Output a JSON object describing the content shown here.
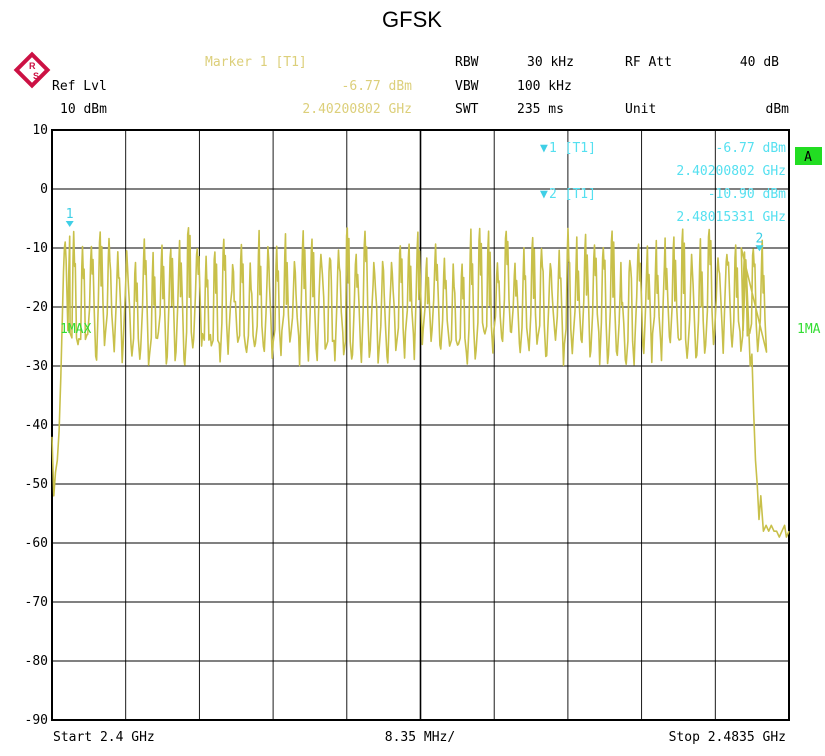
{
  "title": "GFSK",
  "colors": {
    "trace": "#c8c04a",
    "marker_text": "#dccf7a",
    "marker_readout": "#55e0f0",
    "marker_symbol": "#3fcfe6",
    "trace_label": "#33dd33",
    "badge_bg": "#22dd22",
    "grid": "#000000",
    "logo": "#cc1144"
  },
  "icons": {
    "logo": "rohde-schwarz-logo-icon"
  },
  "header": {
    "ref_lvl_label": "Ref Lvl",
    "ref_lvl_value": "10 dBm",
    "marker_title": "Marker 1 [T1]",
    "marker_level": "-6.77 dBm",
    "marker_freq": "2.40200802 GHz",
    "rbw_label": "RBW",
    "rbw_value": "30 kHz",
    "vbw_label": "VBW",
    "vbw_value": "100 kHz",
    "swt_label": "SWT",
    "swt_value": "235 ms",
    "rf_att_label": "RF Att",
    "rf_att_value": "40 dB",
    "unit_label": "Unit",
    "unit_value": "dBm"
  },
  "markers_panel": {
    "m1_label": "1 [T1]",
    "m1_level": "-6.77 dBm",
    "m1_freq": "2.40200802 GHz",
    "m2_label": "2 [T1]",
    "m2_level": "-10.90 dBm",
    "m2_freq": "2.48015331 GHz"
  },
  "badge": "A",
  "trace_label_left": "1MAX",
  "trace_label_right": "1MA",
  "footer": {
    "start": "Start 2.4 GHz",
    "span": "8.35 MHz/",
    "stop": "Stop 2.4835 GHz"
  },
  "chart_data": {
    "type": "line",
    "title": "GFSK",
    "xlabel": "",
    "ylabel": "",
    "x_unit": "GHz",
    "y_unit": "dBm",
    "xlim": [
      2.4,
      2.4835
    ],
    "ylim": [
      -90,
      10
    ],
    "yticks": [
      10,
      0,
      -10,
      -20,
      -30,
      -40,
      -50,
      -60,
      -70,
      -80,
      -90
    ],
    "ytick_labels": [
      "10",
      "0",
      "-10",
      "-20",
      "-30",
      "-40",
      "-50",
      "-60",
      "-70",
      "-80",
      "-90"
    ],
    "grid": true,
    "x_divisions": 10,
    "display_line_y": -20,
    "markers": [
      {
        "id": "1",
        "x": 2.40200802,
        "y": -6.77
      },
      {
        "id": "2",
        "x": 2.48015331,
        "y": -10.9
      }
    ],
    "series": [
      {
        "x": [
          2.4,
          2.4002,
          2.4004,
          2.4006,
          2.4008,
          2.401,
          2.4011,
          2.4012,
          2.4013,
          2.4014,
          2.4015,
          2.4016,
          2.4017,
          2.4018,
          2.4019,
          2.402
        ],
        "y": [
          -42,
          -52,
          -48,
          -46,
          -41,
          -32,
          -26,
          -20,
          -14,
          -10,
          -9,
          -12,
          -18,
          -24,
          -14,
          -8
        ]
      },
      {
        "x": [
          2.4781,
          2.4783,
          2.4786,
          2.4789,
          2.4791,
          2.4793,
          2.4795,
          2.4797,
          2.4799,
          2.4801,
          2.4803,
          2.4806,
          2.4809,
          2.4812,
          2.4815,
          2.4818,
          2.4821,
          2.4824,
          2.4827,
          2.483,
          2.4832,
          2.4835
        ],
        "y": [
          -10,
          -24,
          -12,
          -22,
          -30,
          -28,
          -38,
          -46,
          -50,
          -56,
          -52,
          -58,
          -57,
          -58,
          -57,
          -58,
          -58,
          -59,
          -58,
          -57,
          -59,
          -58
        ]
      }
    ],
    "hopping": {
      "channels": 79,
      "start": 2.4025,
      "step": 0.001,
      "peak_level_range": [
        -6.5,
        -13
      ],
      "valley_level_range": [
        -24,
        -30
      ]
    }
  }
}
